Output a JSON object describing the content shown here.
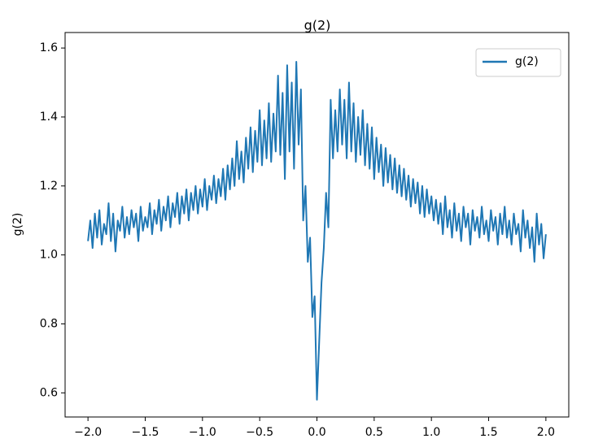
{
  "chart_data": {
    "type": "line",
    "title": "g(2)",
    "ylabel": "g(2)",
    "legend": "upper right",
    "xlim": [
      -2.2,
      2.2
    ],
    "ylim": [
      0.53,
      1.645
    ],
    "xticks": [
      {
        "value": -2,
        "label": "−2.0"
      },
      {
        "value": -1.5,
        "label": "−1.5"
      },
      {
        "value": -1,
        "label": "−1.0"
      },
      {
        "value": -0.5,
        "label": "−0.5"
      },
      {
        "value": 0,
        "label": "0.0"
      },
      0.5,
      {
        "value": 1,
        "label": "1.0"
      },
      1.5,
      {
        "value": 2,
        "label": "2.0"
      }
    ],
    "yticks": [
      0.6,
      0.8,
      {
        "value": 1,
        "label": "1.0"
      },
      1.2,
      1.4,
      1.6
    ],
    "x": [
      -2.0,
      -1.98,
      -1.96,
      -1.94,
      -1.92,
      -1.9,
      -1.88,
      -1.86,
      -1.84,
      -1.82,
      -1.8,
      -1.78,
      -1.76,
      -1.74,
      -1.72,
      -1.7,
      -1.68,
      -1.66,
      -1.64,
      -1.62,
      -1.6,
      -1.58,
      -1.56,
      -1.54,
      -1.52,
      -1.5,
      -1.48,
      -1.46,
      -1.44,
      -1.42,
      -1.4,
      -1.38,
      -1.36,
      -1.34,
      -1.32,
      -1.3,
      -1.28,
      -1.26,
      -1.24,
      -1.22,
      -1.2,
      -1.18,
      -1.16,
      -1.14,
      -1.12,
      -1.1,
      -1.08,
      -1.06,
      -1.04,
      -1.02,
      -1.0,
      -0.98,
      -0.96,
      -0.94,
      -0.92,
      -0.9,
      -0.88,
      -0.86,
      -0.84,
      -0.82,
      -0.8,
      -0.78,
      -0.76,
      -0.74,
      -0.72,
      -0.7,
      -0.68,
      -0.66,
      -0.64,
      -0.62,
      -0.6,
      -0.58,
      -0.56,
      -0.54,
      -0.52,
      -0.5,
      -0.48,
      -0.46,
      -0.44,
      -0.42,
      -0.4,
      -0.38,
      -0.36,
      -0.34,
      -0.32,
      -0.3,
      -0.28,
      -0.26,
      -0.24,
      -0.22,
      -0.2,
      -0.18,
      -0.16,
      -0.14,
      -0.12,
      -0.1,
      -0.08,
      -0.06,
      -0.04,
      -0.02,
      0.0,
      0.02,
      0.04,
      0.06,
      0.08,
      0.1,
      0.12,
      0.14,
      0.16,
      0.18,
      0.2,
      0.22,
      0.24,
      0.26,
      0.28,
      0.3,
      0.32,
      0.34,
      0.36,
      0.38,
      0.4,
      0.42,
      0.44,
      0.46,
      0.48,
      0.5,
      0.52,
      0.54,
      0.56,
      0.58,
      0.6,
      0.62,
      0.64,
      0.66,
      0.68,
      0.7,
      0.72,
      0.74,
      0.76,
      0.78,
      0.8,
      0.82,
      0.84,
      0.86,
      0.88,
      0.9,
      0.92,
      0.94,
      0.96,
      0.98,
      1.0,
      1.02,
      1.04,
      1.06,
      1.08,
      1.1,
      1.12,
      1.14,
      1.16,
      1.18,
      1.2,
      1.22,
      1.24,
      1.26,
      1.28,
      1.3,
      1.32,
      1.34,
      1.36,
      1.38,
      1.4,
      1.42,
      1.44,
      1.46,
      1.48,
      1.5,
      1.52,
      1.54,
      1.56,
      1.58,
      1.6,
      1.62,
      1.64,
      1.66,
      1.68,
      1.7,
      1.72,
      1.74,
      1.76,
      1.78,
      1.8,
      1.82,
      1.84,
      1.86,
      1.88,
      1.9,
      1.92,
      1.94,
      1.96,
      1.98,
      2.0
    ],
    "series": [
      {
        "name": "g(2)",
        "color": "#1f77b4",
        "values": [
          1.04,
          1.1,
          1.02,
          1.12,
          1.05,
          1.13,
          1.03,
          1.09,
          1.06,
          1.15,
          1.04,
          1.12,
          1.01,
          1.1,
          1.07,
          1.14,
          1.05,
          1.11,
          1.06,
          1.13,
          1.08,
          1.12,
          1.04,
          1.14,
          1.07,
          1.11,
          1.08,
          1.15,
          1.06,
          1.13,
          1.09,
          1.16,
          1.07,
          1.14,
          1.1,
          1.17,
          1.08,
          1.15,
          1.11,
          1.18,
          1.09,
          1.17,
          1.12,
          1.19,
          1.1,
          1.18,
          1.13,
          1.2,
          1.12,
          1.19,
          1.14,
          1.22,
          1.13,
          1.2,
          1.16,
          1.23,
          1.15,
          1.22,
          1.17,
          1.25,
          1.16,
          1.26,
          1.19,
          1.28,
          1.2,
          1.33,
          1.22,
          1.3,
          1.21,
          1.34,
          1.25,
          1.37,
          1.24,
          1.36,
          1.27,
          1.42,
          1.26,
          1.39,
          1.28,
          1.44,
          1.27,
          1.41,
          1.3,
          1.52,
          1.29,
          1.47,
          1.22,
          1.55,
          1.3,
          1.5,
          1.25,
          1.56,
          1.32,
          1.48,
          1.1,
          1.2,
          0.98,
          1.05,
          0.82,
          0.88,
          0.58,
          0.75,
          0.92,
          1.02,
          1.18,
          1.08,
          1.45,
          1.28,
          1.42,
          1.3,
          1.48,
          1.32,
          1.45,
          1.28,
          1.5,
          1.3,
          1.44,
          1.27,
          1.4,
          1.29,
          1.42,
          1.26,
          1.38,
          1.25,
          1.37,
          1.22,
          1.34,
          1.24,
          1.32,
          1.2,
          1.31,
          1.21,
          1.29,
          1.19,
          1.28,
          1.18,
          1.26,
          1.17,
          1.25,
          1.16,
          1.23,
          1.14,
          1.22,
          1.15,
          1.21,
          1.12,
          1.2,
          1.11,
          1.19,
          1.12,
          1.17,
          1.1,
          1.16,
          1.09,
          1.15,
          1.06,
          1.17,
          1.08,
          1.13,
          1.05,
          1.15,
          1.07,
          1.12,
          1.04,
          1.14,
          1.08,
          1.12,
          1.03,
          1.13,
          1.07,
          1.11,
          1.05,
          1.14,
          1.06,
          1.1,
          1.04,
          1.13,
          1.07,
          1.11,
          1.03,
          1.12,
          1.06,
          1.14,
          1.05,
          1.1,
          1.03,
          1.12,
          1.06,
          1.09,
          1.01,
          1.13,
          1.05,
          1.1,
          1.02,
          1.08,
          0.98,
          1.12,
          1.03,
          1.09,
          0.99,
          1.06
        ]
      }
    ]
  }
}
